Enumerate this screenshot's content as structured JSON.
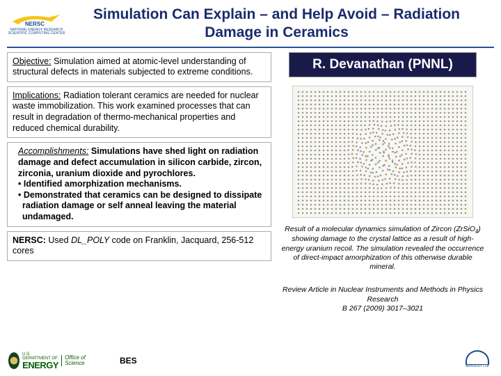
{
  "header": {
    "logo_text": "NERSC",
    "logo_sub": "NATIONAL ENERGY RESEARCH SCIENTIFIC COMPUTING CENTER",
    "title": "Simulation Can Explain – and Help Avoid – Radiation Damage in Ceramics",
    "logo_colors": {
      "yellow": "#f5c518",
      "blue": "#1a4b8c"
    }
  },
  "left": {
    "objective_label": "Objective:",
    "objective_text": " Simulation aimed at atomic-level understanding of structural defects in materials subjected to extreme conditions.",
    "implications_label": "Implications:",
    "implications_text": " Radiation tolerant ceramics are needed for nuclear waste immobilization. This work examined processes that can result in degradation of thermo-mechanical properties and reduced chemical durability.",
    "accomplishments_label": "Accomplishments:",
    "accomplishments_intro": " Simulations have shed light on radiation damage and defect accumulation in silicon carbide, zircon, zirconia, uranium dioxide and pyrochlores.",
    "accomplishments_b1": "• Identified amorphization mechanisms.",
    "accomplishments_b2": "• Demonstrated that ceramics can be designed to dissipate radiation damage or self anneal leaving the material undamaged.",
    "nersc_label": "NERSC:",
    "nersc_text_pre": " Used ",
    "nersc_code": "DL_POLY",
    "nersc_text_post": " code on Franklin, Jacquard, 256-512 cores"
  },
  "right": {
    "author": "R. Devanathan (PNNL)",
    "sim_colors": {
      "bg": "#f5f5ee",
      "atom1": "#a088c0",
      "atom2": "#c08f6a",
      "atom3": "#7fa890"
    },
    "caption_pre": "Result of a molecular dynamics simulation of Zircon (ZrSiO",
    "caption_sub": "4",
    "caption_post": ") showing damage to the crystal lattice as a result of high-energy uranium recoil. The simulation revealed the occurrence of direct-impact amorphization of this otherwise durable mineral.",
    "review_l1": "Review Article in Nuclear Instruments and Methods in Physics Research",
    "review_l2": "B 267 (2009) 3017–3021"
  },
  "footer": {
    "doe_small": "U.S. DEPARTMENT OF",
    "doe_big": "ENERGY",
    "doe_office": "Office of Science",
    "bes": "BES",
    "lbl": "BERKELEY LAB"
  }
}
